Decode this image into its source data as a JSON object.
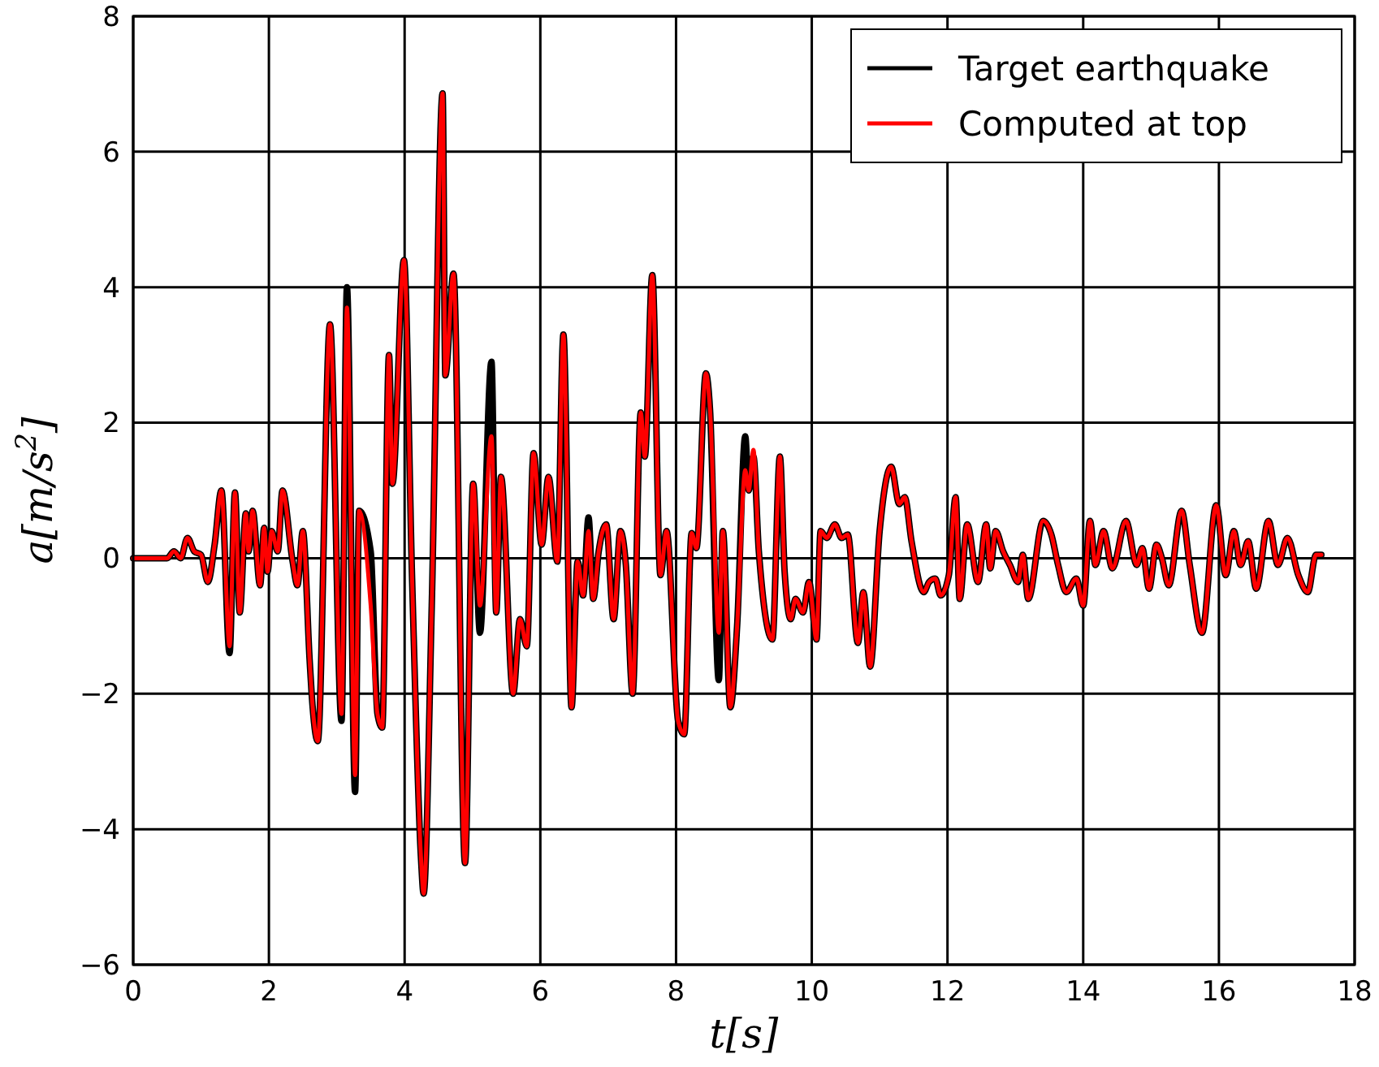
{
  "chart_data": {
    "type": "line",
    "xlabel": "t[s]",
    "ylabel": "a[m/s$^{2}$]",
    "xlim": [
      0,
      18
    ],
    "xticks": [
      0,
      2,
      4,
      6,
      8,
      10,
      12,
      14,
      16,
      18
    ],
    "ylim": [
      -6,
      8
    ],
    "yticks": [
      -6,
      -4,
      -2,
      0,
      2,
      4,
      6,
      8
    ],
    "grid": true,
    "legend": "top right",
    "marker": "none",
    "line_style": "solid",
    "x": [
      0,
      0.5,
      0.6,
      0.7,
      0.8,
      0.9,
      1.0,
      1.1,
      1.2,
      1.3,
      1.42,
      1.5,
      1.57,
      1.66,
      1.7,
      1.76,
      1.87,
      1.93,
      1.98,
      2.04,
      2.13,
      2.2,
      2.35,
      2.42,
      2.5,
      2.6,
      2.63,
      2.72,
      2.9,
      3.07,
      3.15,
      3.27,
      3.33,
      3.5,
      3.6,
      3.67,
      3.77,
      3.82,
      3.99,
      4.11,
      4.24,
      4.28,
      4.4,
      4.56,
      4.6,
      4.72,
      4.89,
      5.01,
      5.11,
      5.28,
      5.35,
      5.42,
      5.6,
      5.7,
      5.8,
      5.9,
      6.02,
      6.12,
      6.25,
      6.34,
      6.46,
      6.55,
      6.63,
      6.71,
      6.78,
      6.86,
      6.97,
      7.08,
      7.18,
      7.26,
      7.36,
      7.48,
      7.54,
      7.65,
      7.77,
      7.86,
      8.03,
      8.12,
      8.23,
      8.3,
      8.44,
      8.5,
      8.63,
      8.69,
      8.8,
      8.9,
      9.02,
      9.07,
      9.14,
      9.22,
      9.42,
      9.53,
      9.6,
      9.69,
      9.76,
      9.87,
      9.96,
      10.07,
      10.13,
      10.22,
      10.34,
      10.44,
      10.53,
      10.68,
      10.76,
      10.86,
      11.0,
      11.17,
      11.29,
      11.37,
      11.47,
      11.65,
      11.73,
      11.82,
      11.9,
      12.02,
      12.12,
      12.18,
      12.29,
      12.45,
      12.57,
      12.63,
      12.71,
      12.82,
      12.92,
      13.04,
      13.11,
      13.19,
      13.41,
      13.53,
      13.63,
      13.75,
      13.9,
      14.0,
      14.1,
      14.18,
      14.3,
      14.43,
      14.63,
      14.79,
      14.87,
      14.97,
      15.08,
      15.16,
      15.26,
      15.45,
      15.57,
      15.75,
      15.96,
      16.1,
      16.22,
      16.32,
      16.43,
      16.55,
      16.73,
      16.87,
      17.01,
      17.17,
      17.31,
      17.43,
      17.51
    ],
    "series": [
      {
        "name": "Target earthquake",
        "color": "#000000",
        "values": [
          0,
          0,
          0.1,
          0,
          0.3,
          0.1,
          0.05,
          -0.35,
          0.2,
          1.0,
          -1.4,
          0.97,
          -0.8,
          0.66,
          0.1,
          0.7,
          -0.4,
          0.45,
          -0.2,
          0.4,
          0.1,
          1.0,
          -0.05,
          -0.4,
          0.4,
          -1.5,
          -2.0,
          -2.7,
          3.45,
          -2.4,
          4.0,
          -3.45,
          0.7,
          0.1,
          -2.3,
          -2.5,
          3.0,
          1.1,
          4.4,
          -0.3,
          -4.4,
          -4.95,
          -0.7,
          6.86,
          2.7,
          4.2,
          -4.5,
          1.1,
          -1.1,
          2.9,
          -0.8,
          1.2,
          -2.0,
          -0.9,
          -1.3,
          1.55,
          0.2,
          1.2,
          -0.05,
          3.3,
          -2.2,
          -0.05,
          -0.55,
          0.6,
          -0.6,
          0.1,
          0.5,
          -0.9,
          0.4,
          -0.1,
          -2.0,
          2.15,
          1.5,
          4.18,
          -0.25,
          0.4,
          -2.4,
          -2.6,
          0.37,
          0.15,
          2.73,
          2.2,
          -1.8,
          0.4,
          -2.2,
          -1.0,
          1.8,
          1.0,
          1.5,
          0.1,
          -1.2,
          1.5,
          -0.2,
          -0.9,
          -0.6,
          -0.8,
          -0.35,
          -1.2,
          0.4,
          0.3,
          0.5,
          0.3,
          0.35,
          -1.25,
          -0.5,
          -1.6,
          0.4,
          1.35,
          0.8,
          0.9,
          0.25,
          -0.5,
          -0.35,
          -0.3,
          -0.55,
          -0.25,
          0.9,
          -0.6,
          0.5,
          -0.35,
          0.5,
          -0.15,
          0.4,
          0.1,
          -0.1,
          -0.35,
          0.05,
          -0.6,
          0.55,
          0.35,
          -0.1,
          -0.5,
          -0.3,
          -0.7,
          0.55,
          -0.1,
          0.4,
          -0.15,
          0.55,
          -0.1,
          0.15,
          -0.45,
          0.2,
          0,
          -0.4,
          0.7,
          -0.1,
          -1.1,
          0.78,
          -0.25,
          0.4,
          -0.1,
          0.25,
          -0.45,
          0.55,
          -0.1,
          0.3,
          -0.25,
          -0.5,
          0.05,
          0.05
        ]
      },
      {
        "name": "Computed at top",
        "color": "#ff0000",
        "values": [
          0,
          0,
          0.1,
          0,
          0.3,
          0.1,
          0.05,
          -0.35,
          0.2,
          1.0,
          -1.3,
          0.97,
          -0.8,
          0.66,
          0.1,
          0.7,
          -0.4,
          0.45,
          -0.2,
          0.4,
          0.1,
          1.0,
          -0.05,
          -0.4,
          0.4,
          -1.5,
          -2.0,
          -2.7,
          3.45,
          -2.3,
          3.7,
          -3.2,
          0.7,
          -0.7,
          -2.3,
          -2.5,
          3.0,
          1.1,
          4.4,
          -0.3,
          -4.4,
          -4.95,
          -0.7,
          6.86,
          2.7,
          4.2,
          -4.5,
          1.1,
          -0.7,
          1.8,
          -0.8,
          1.2,
          -2.0,
          -0.9,
          -1.3,
          1.55,
          0.2,
          1.2,
          -0.05,
          3.3,
          -2.2,
          -0.05,
          -0.55,
          0.4,
          -0.6,
          0.1,
          0.5,
          -0.9,
          0.4,
          -0.1,
          -2.0,
          2.15,
          1.5,
          4.18,
          -0.25,
          0.4,
          -2.4,
          -2.6,
          0.37,
          0.15,
          2.73,
          2.2,
          -1.1,
          0.4,
          -2.2,
          -1.0,
          1.3,
          1.0,
          1.6,
          0.1,
          -1.2,
          1.5,
          -0.2,
          -0.9,
          -0.6,
          -0.8,
          -0.35,
          -1.2,
          0.4,
          0.3,
          0.5,
          0.3,
          0.35,
          -1.25,
          -0.5,
          -1.6,
          0.4,
          1.35,
          0.8,
          0.9,
          0.25,
          -0.5,
          -0.35,
          -0.3,
          -0.55,
          -0.25,
          0.9,
          -0.6,
          0.5,
          -0.35,
          0.5,
          -0.15,
          0.4,
          0.1,
          -0.1,
          -0.35,
          0.05,
          -0.6,
          0.55,
          0.35,
          -0.1,
          -0.5,
          -0.3,
          -0.7,
          0.55,
          -0.1,
          0.4,
          -0.15,
          0.55,
          -0.1,
          0.15,
          -0.45,
          0.2,
          0,
          -0.4,
          0.7,
          -0.1,
          -1.1,
          0.78,
          -0.25,
          0.4,
          -0.1,
          0.25,
          -0.45,
          0.55,
          -0.1,
          0.3,
          -0.25,
          -0.5,
          0.05,
          0.05
        ]
      }
    ]
  }
}
